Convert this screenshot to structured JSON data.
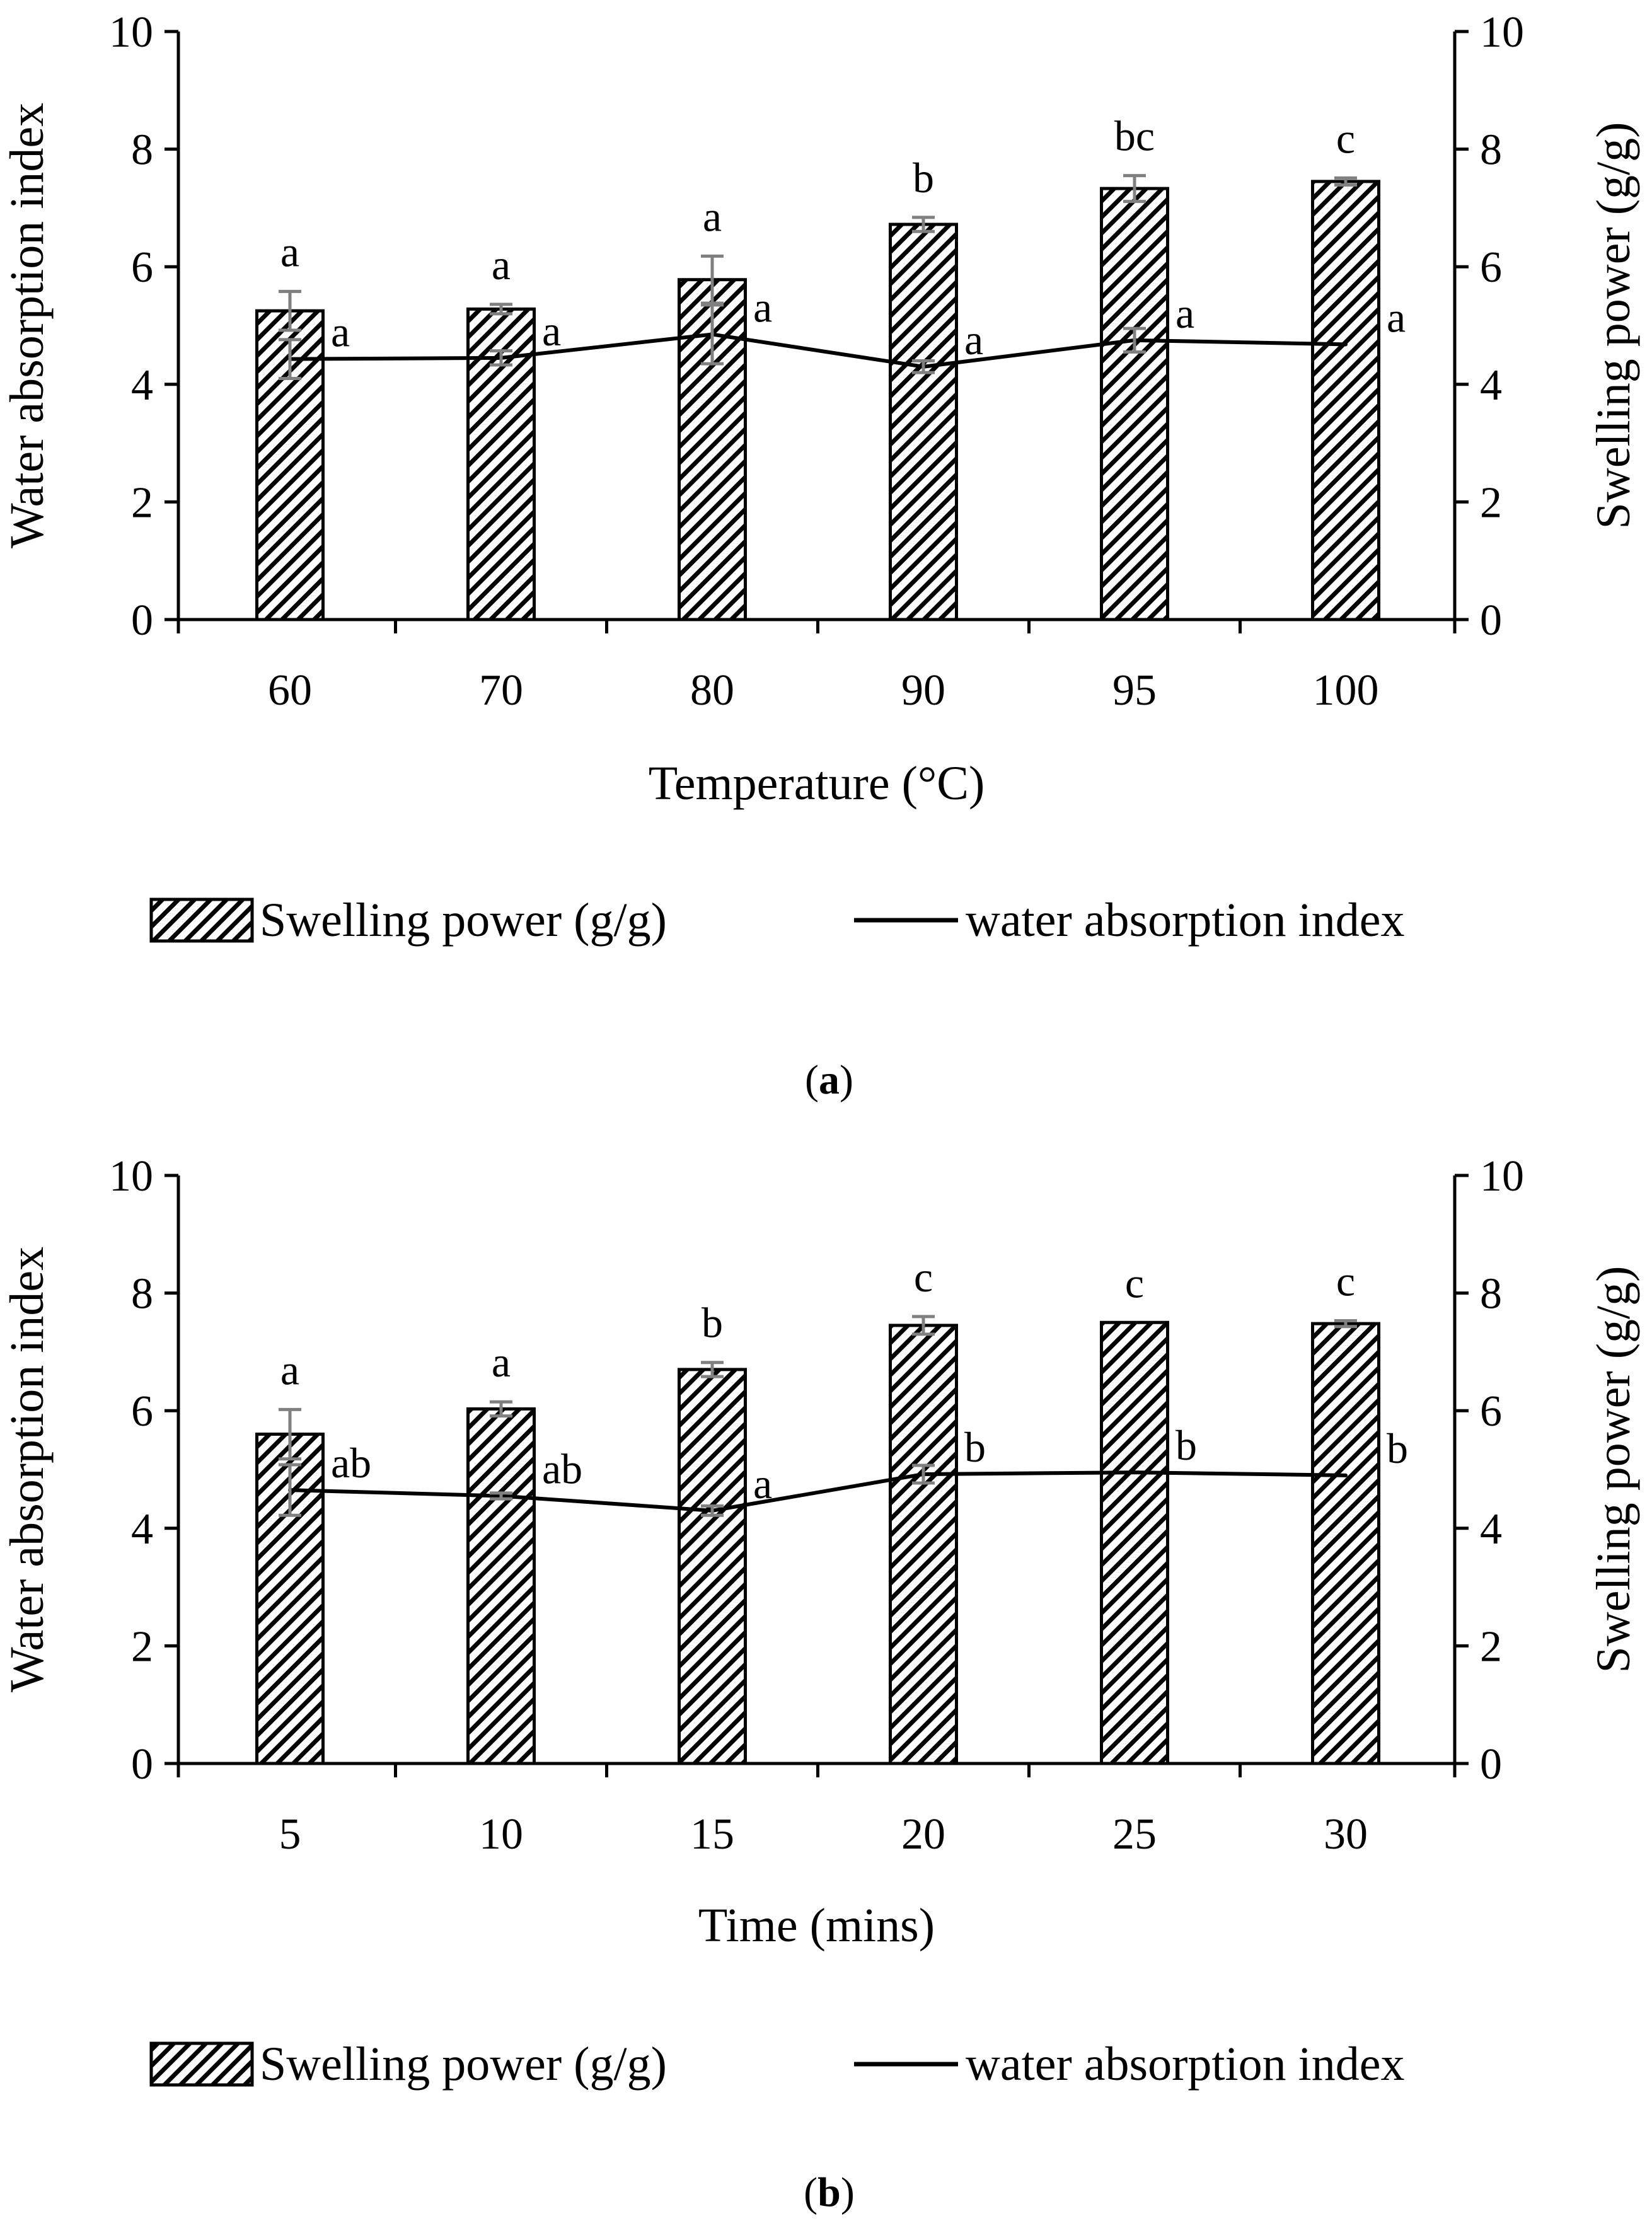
{
  "colors": {
    "ink": "#000000",
    "error_bar": "#808080",
    "background": "#ffffff"
  },
  "chart_data": [
    {
      "type": "bar",
      "panel_label": "a",
      "categories": [
        "60",
        "70",
        "80",
        "90",
        "95",
        "100"
      ],
      "xlabel": "Temperature (°C)",
      "ylabel": "Water absorption index",
      "ylabel_right": "Swelling power (g/g)",
      "ylim": [
        0,
        10
      ],
      "ylim_right": [
        0,
        10
      ],
      "yticks": [
        "0",
        "2",
        "4",
        "6",
        "8",
        "10"
      ],
      "yticks_right": [
        "0",
        "2",
        "4",
        "6",
        "8",
        "10"
      ],
      "grid": false,
      "legend_position": "bottom",
      "series": [
        {
          "name": "Swelling power (g/g)",
          "kind": "bar",
          "axis": "right",
          "values": [
            5.25,
            5.28,
            5.78,
            6.72,
            7.33,
            7.45
          ],
          "errors": [
            0.33,
            0.08,
            0.4,
            0.12,
            0.22,
            0.06
          ],
          "labels": [
            "a",
            "a",
            "a",
            "b",
            "bc",
            "c"
          ]
        },
        {
          "name": "water absorption index",
          "kind": "line",
          "axis": "left",
          "values": [
            4.43,
            4.45,
            4.85,
            4.3,
            4.75,
            4.68
          ],
          "errors": [
            0.33,
            0.12,
            0.5,
            0.1,
            0.2,
            0.0
          ],
          "labels": [
            "a",
            "a",
            "a",
            "a",
            "a",
            "a"
          ]
        }
      ]
    },
    {
      "type": "bar",
      "panel_label": "b",
      "categories": [
        "5",
        "10",
        "15",
        "20",
        "25",
        "30"
      ],
      "xlabel": "Time (mins)",
      "ylabel": "Water absorption index",
      "ylabel_right": "Swelling power (g/g)",
      "ylim": [
        0,
        10
      ],
      "ylim_right": [
        0,
        10
      ],
      "yticks": [
        "0",
        "2",
        "4",
        "6",
        "8",
        "10"
      ],
      "yticks_right": [
        "0",
        "2",
        "4",
        "6",
        "8",
        "10"
      ],
      "grid": false,
      "legend_position": "bottom",
      "series": [
        {
          "name": "Swelling power (g/g)",
          "kind": "bar",
          "axis": "right",
          "values": [
            5.6,
            6.03,
            6.7,
            7.45,
            7.5,
            7.48
          ],
          "errors": [
            0.42,
            0.12,
            0.12,
            0.15,
            0.0,
            0.05
          ],
          "labels": [
            "a",
            "a",
            "b",
            "c",
            "c",
            "c"
          ]
        },
        {
          "name": "water absorption index",
          "kind": "line",
          "axis": "left",
          "values": [
            4.65,
            4.55,
            4.3,
            4.92,
            4.95,
            4.9
          ],
          "errors": [
            0.43,
            0.05,
            0.08,
            0.15,
            0.0,
            0.0
          ],
          "labels": [
            "ab",
            "ab",
            "a",
            "b",
            "b",
            "b"
          ]
        }
      ]
    }
  ]
}
